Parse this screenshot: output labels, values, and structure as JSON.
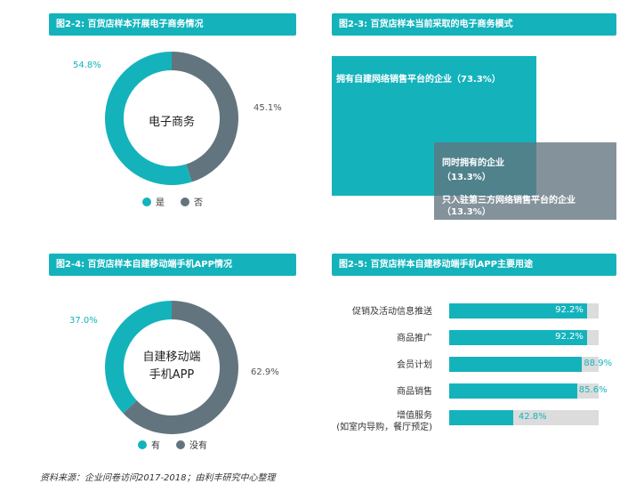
{
  "colors": {
    "teal": "#14b3bc",
    "gray": "#62757f",
    "track": "#dcdcdc"
  },
  "chart_data": [
    {
      "type": "pie",
      "title": "图2-2: 百货店样本开展电子商务情况",
      "center_label": "电子商务",
      "slices": [
        {
          "name": "是",
          "value": 54.8,
          "label": "54.8%"
        },
        {
          "name": "否",
          "value": 45.1,
          "label": "45.1%"
        }
      ]
    },
    {
      "type": "treemap",
      "title": "图2-3: 百货店样本当前采取的电子商务模式",
      "items": [
        {
          "name": "拥有自建网络销售平台的企业",
          "value": 73.3,
          "label": "（73.3%）"
        },
        {
          "name": "同时拥有的企业",
          "value": 13.3,
          "label": "（13.3%）"
        },
        {
          "name": "只入驻第三方网络销售平台的企业",
          "value": 13.3,
          "label": "（13.3%）"
        }
      ]
    },
    {
      "type": "pie",
      "title": "图2-4: 百货店样本自建移动端手机APP情况",
      "center_label": [
        "自建移动端",
        "手机APP"
      ],
      "slices": [
        {
          "name": "有",
          "value": 37.0,
          "label": "37.0%"
        },
        {
          "name": "没有",
          "value": 62.9,
          "label": "62.9%"
        }
      ]
    },
    {
      "type": "bar",
      "orientation": "horizontal",
      "title": "图2-5: 百货店样本自建移动端手机APP主要用途",
      "categories": [
        [
          "促销及活动信息推送"
        ],
        [
          "商品推广"
        ],
        [
          "会员计划"
        ],
        [
          "商品销售"
        ],
        [
          "增值服务",
          "(如室内导购，餐厅预定)"
        ]
      ],
      "values": [
        92.2,
        92.2,
        88.9,
        85.6,
        42.8
      ],
      "labels": [
        "92.2%",
        "92.2%",
        "88.9%",
        "85.6%",
        "42.8%"
      ],
      "xlim": [
        0,
        100
      ]
    }
  ],
  "footer": "资料来源：企业问卷访问2017-2018；由利丰研究中心整理"
}
